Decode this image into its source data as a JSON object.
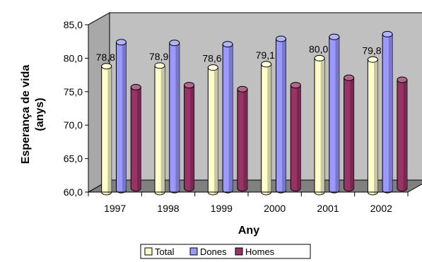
{
  "chart_data": {
    "type": "bar",
    "title": "",
    "xlabel": "Any",
    "ylabel_line1": "Esperança de vida",
    "ylabel_line2": "(anys)",
    "ylim": [
      60,
      85
    ],
    "yticks": [
      "60,0",
      "65,0",
      "70,0",
      "75,0",
      "80,0",
      "85,0"
    ],
    "categories": [
      "1997",
      "1998",
      "1999",
      "2000",
      "2001",
      "2002"
    ],
    "series": [
      {
        "name": "Total",
        "values": [
          78.8,
          78.9,
          78.6,
          79.1,
          80.0,
          79.8
        ],
        "color": "#ffffcc"
      },
      {
        "name": "Dones",
        "values": [
          82.1,
          82.0,
          81.8,
          82.6,
          82.9,
          83.3
        ],
        "color": "#9999ff"
      },
      {
        "name": "Homes",
        "values": [
          75.1,
          75.4,
          74.8,
          75.4,
          76.5,
          76.2
        ],
        "color": "#993366"
      }
    ],
    "data_labels": [
      "78,8",
      "78,9",
      "78,6",
      "79,1",
      "80,0",
      "79,8"
    ],
    "legend_position": "bottom",
    "grid": false
  }
}
